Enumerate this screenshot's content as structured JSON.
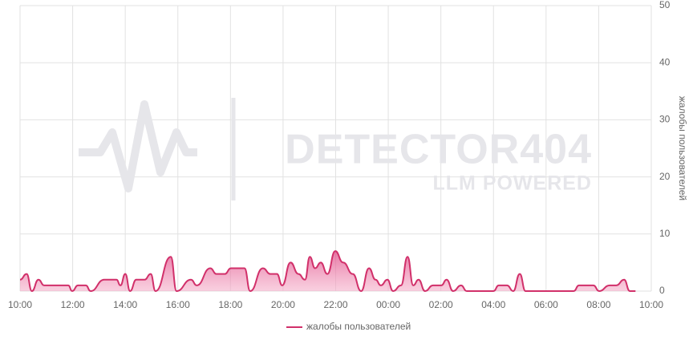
{
  "chart_data": {
    "type": "area",
    "watermark": {
      "title": "DETECTOR404",
      "subtitle": "LLM POWERED"
    },
    "y_label": "жалобы пользователей",
    "series": [
      {
        "name": "жалобы пользователей",
        "color": "#d1306a",
        "x": [
          0,
          15,
          27,
          42,
          55,
          110,
          119,
          132,
          150,
          161,
          192,
          220,
          229,
          240,
          251,
          265,
          284,
          298,
          309,
          344,
          357,
          390,
          403,
          434,
          448,
          467,
          481,
          512,
          525,
          554,
          571,
          586,
          598,
          617,
          635,
          650,
          661,
          673,
          686,
          701,
          719,
          737,
          759,
          778,
          796,
          811,
          823,
          838,
          851,
          869,
          884,
          897,
          909,
          924,
          942,
          961,
          973,
          988,
          1006,
          1019,
          1052,
          1080,
          1092,
          1111,
          1125,
          1140,
          1153,
          1235,
          1263,
          1275,
          1308,
          1321,
          1345,
          1360,
          1378,
          1391,
          1404
        ],
        "values": [
          2,
          3,
          0,
          2,
          1,
          1,
          0,
          1,
          1,
          0,
          2,
          2,
          1,
          3,
          0,
          2,
          2,
          3,
          0,
          6,
          0,
          2,
          1,
          4,
          3,
          3,
          4,
          4,
          0,
          4,
          3,
          3,
          1,
          5,
          3,
          2,
          6,
          4,
          5,
          3,
          7,
          5,
          3,
          0,
          4,
          2,
          1,
          2,
          0,
          1,
          6,
          1,
          2,
          0,
          1,
          1,
          2,
          0,
          1,
          0,
          0,
          0,
          1,
          1,
          0,
          3,
          0,
          0,
          0,
          1,
          1,
          0,
          1,
          1,
          2,
          0,
          0
        ]
      }
    ],
    "xlim": [
      0,
      1440
    ],
    "xticks": [
      {
        "value": 0,
        "label": "10:00"
      },
      {
        "value": 120,
        "label": "12:00"
      },
      {
        "value": 240,
        "label": "14:00"
      },
      {
        "value": 360,
        "label": "16:00"
      },
      {
        "value": 480,
        "label": "18:00"
      },
      {
        "value": 600,
        "label": "20:00"
      },
      {
        "value": 720,
        "label": "22:00"
      },
      {
        "value": 840,
        "label": "00:00"
      },
      {
        "value": 960,
        "label": "02:00"
      },
      {
        "value": 1080,
        "label": "04:00"
      },
      {
        "value": 1200,
        "label": "06:00"
      },
      {
        "value": 1320,
        "label": "08:00"
      },
      {
        "value": 1440,
        "label": "10:00"
      }
    ],
    "ylim": [
      0,
      50
    ],
    "yticks": [
      0,
      10,
      20,
      30,
      40,
      50
    ],
    "grid": true
  }
}
